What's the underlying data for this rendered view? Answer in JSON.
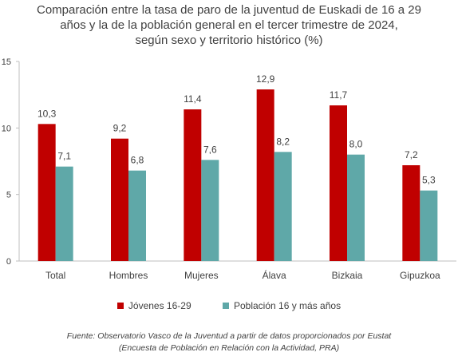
{
  "title_lines": [
    "Comparación entre la tasa de paro de la juventud de Euskadi de 16 a 29",
    "años y la de la población general en el tercer trimestre de 2024,",
    "según sexo y territorio histórico (%)"
  ],
  "source_lines": [
    "Fuente: Observatorio Vasco de la Juventud a partir de datos proporcionados por Eustat",
    "(Encuesta de Población en Relación con la Actividad, PRA)"
  ],
  "chart_data": {
    "type": "bar",
    "categories": [
      "Total",
      "Hombres",
      "Mujeres",
      "Álava",
      "Bizkaia",
      "Gipuzkoa"
    ],
    "series": [
      {
        "name": "Jóvenes 16-29",
        "values": [
          10.3,
          9.2,
          11.4,
          12.9,
          11.7,
          7.2
        ],
        "labels": [
          "10,3",
          "9,2",
          "11,4",
          "12,9",
          "11,7",
          "7,2"
        ],
        "color": "#c00000"
      },
      {
        "name": "Población 16 y más años",
        "values": [
          7.1,
          6.8,
          7.6,
          8.2,
          8.0,
          5.3
        ],
        "labels": [
          "7,1",
          "6,8",
          "7,6",
          "8,2",
          "8,0",
          "5,3"
        ],
        "color": "#5fa8a8"
      }
    ],
    "ylim": [
      0,
      15
    ],
    "yticks": [
      0,
      5,
      10,
      15
    ],
    "grid": false,
    "legend_position": "bottom"
  }
}
